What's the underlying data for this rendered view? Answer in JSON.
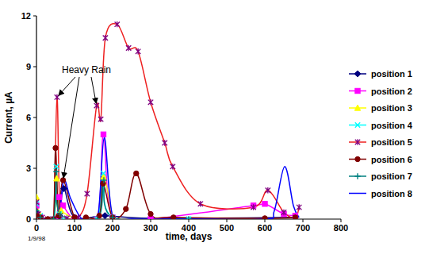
{
  "chart_data": {
    "type": "line",
    "x_label": "time, days",
    "y_label": "Current, µA",
    "annotations": [
      "Heavy Rain",
      "1/9/98"
    ],
    "xlim": [
      0,
      800
    ],
    "xticks": [
      0,
      100,
      200,
      300,
      400,
      500,
      600,
      700,
      800
    ],
    "ylim": [
      0,
      12
    ],
    "yticks": [
      0,
      3,
      6,
      9,
      12
    ],
    "grid": false,
    "legend": "right",
    "series": [
      {
        "name": "position 1",
        "color": "#000080",
        "marker": "diamond",
        "x": [
          0,
          10,
          50,
          60,
          72,
          100,
          180,
          300,
          680
        ],
        "values": [
          0.4,
          0.1,
          0,
          0.2,
          1.8,
          0.1,
          0.2,
          0.05,
          0.1
        ]
      },
      {
        "name": "position 2",
        "color": "#ff00ff",
        "marker": "square",
        "x": [
          0,
          10,
          50,
          60,
          70,
          100,
          160,
          176,
          200,
          300,
          570,
          600,
          650,
          680
        ],
        "values": [
          0.8,
          0.1,
          0,
          1.3,
          0.8,
          0,
          0,
          5.0,
          0.1,
          0,
          0.8,
          0.9,
          0.3,
          0.2
        ]
      },
      {
        "name": "position 3",
        "color": "#ffff00",
        "marker": "triangle",
        "x": [
          0,
          10,
          45,
          53,
          65,
          160,
          176,
          200
        ],
        "values": [
          1.3,
          0.2,
          0,
          2.4,
          0.5,
          0,
          2.5,
          0.1
        ]
      },
      {
        "name": "position 4",
        "color": "#00ffff",
        "marker": "x",
        "x": [
          0,
          10,
          45,
          52,
          60,
          100,
          160,
          176,
          200,
          400
        ],
        "values": [
          0.9,
          0.2,
          0,
          3.1,
          0.3,
          0,
          0,
          2.7,
          0.1,
          0
        ]
      },
      {
        "name": "position 5",
        "color": "#ee2020",
        "marker": "star",
        "x": [
          0,
          5,
          15,
          30,
          45,
          54,
          62,
          80,
          110,
          133,
          158,
          169,
          181,
          212,
          242,
          267,
          300,
          337,
          358,
          431,
          570,
          608,
          650,
          680,
          690
        ],
        "values": [
          1.0,
          0.3,
          0.1,
          0,
          0,
          7.2,
          0.2,
          0.05,
          0.1,
          1.5,
          6.7,
          5.9,
          10.7,
          11.5,
          10.1,
          9.9,
          6.9,
          4.5,
          3.1,
          0.9,
          0.7,
          1.7,
          0.4,
          0.1,
          0.7
        ]
      },
      {
        "name": "position 6",
        "color": "#800000",
        "marker": "circle",
        "x": [
          0,
          10,
          30,
          45,
          50,
          58,
          70,
          100,
          130,
          165,
          175,
          200,
          235,
          262,
          300,
          360,
          600,
          680
        ],
        "values": [
          0.2,
          0.1,
          0,
          0,
          4.2,
          0.2,
          2.3,
          0.1,
          0.1,
          0.2,
          2.1,
          0.1,
          0.6,
          2.7,
          0.3,
          0.1,
          0.05,
          0.1
        ]
      },
      {
        "name": "position 7",
        "color": "#008080",
        "marker": "plus",
        "x": [
          0,
          10,
          45,
          52,
          62,
          160,
          177,
          200,
          400
        ],
        "values": [
          0.5,
          0.1,
          0,
          2.8,
          0.3,
          0,
          2.3,
          0.1,
          0
        ]
      },
      {
        "name": "position 8",
        "color": "#0000ff",
        "marker": "none",
        "x": [
          0,
          20,
          45,
          60,
          72,
          90,
          120,
          160,
          178,
          200,
          250,
          400,
          600,
          625,
          652,
          675,
          690
        ],
        "values": [
          0.1,
          0,
          0,
          0.3,
          2.3,
          1.2,
          0,
          0,
          4.8,
          0.2,
          0,
          0,
          0,
          0.5,
          3.1,
          0.8,
          0.1
        ]
      }
    ]
  }
}
